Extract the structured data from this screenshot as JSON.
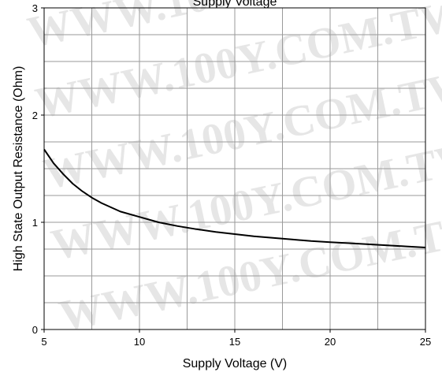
{
  "chart_data": {
    "type": "line",
    "title": "Supply Voltage",
    "xlabel": "Supply Voltage (V)",
    "ylabel": "High State Output Resistance (Ohm)",
    "xlim": [
      5,
      25
    ],
    "ylim": [
      0,
      3
    ],
    "xticks": [
      5,
      10,
      15,
      20,
      25
    ],
    "yticks": [
      0,
      1,
      2,
      3
    ],
    "x_minor_step": 2.5,
    "y_minor_step": 0.25,
    "grid": true,
    "series": [
      {
        "color": "#000000",
        "x": [
          5,
          5.5,
          6,
          6.5,
          7,
          7.5,
          8,
          9,
          10,
          11,
          12,
          13,
          14,
          15,
          16,
          17,
          18,
          19,
          20,
          21,
          22,
          23,
          24,
          25
        ],
        "y": [
          1.68,
          1.55,
          1.45,
          1.36,
          1.29,
          1.23,
          1.18,
          1.1,
          1.05,
          1.0,
          0.965,
          0.935,
          0.91,
          0.89,
          0.87,
          0.855,
          0.84,
          0.825,
          0.815,
          0.805,
          0.795,
          0.785,
          0.775,
          0.765
        ]
      }
    ]
  },
  "watermark": "WWW.100Y.COM.TW"
}
